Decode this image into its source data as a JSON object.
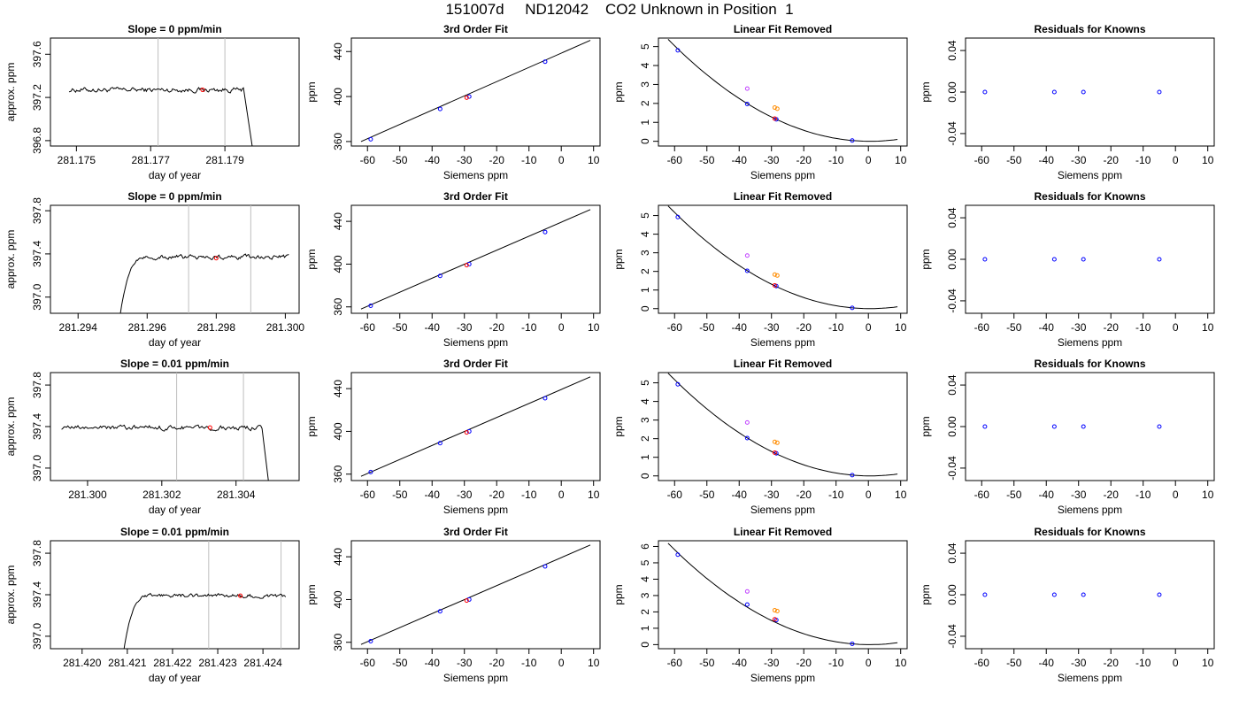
{
  "page": {
    "title": "151007d     ND12042    CO2 Unknown in Position  1"
  },
  "colors": {
    "known": "#0000ff",
    "sample": "#ff0000",
    "ref_a": "#c040ff",
    "ref_b": "#ff8c00",
    "line": "#000000",
    "marker_line": "#bebebe"
  },
  "chart_data": [
    {
      "type": "line",
      "panel": "timeseries",
      "row": 0,
      "title": "Slope =  0  ppm/min",
      "xlabel": "day of year",
      "ylabel": "approx. ppm",
      "xlim": [
        281.1743,
        281.181
      ],
      "ylim": [
        396.75,
        397.75
      ],
      "xticks": [
        281.175,
        281.177,
        281.179
      ],
      "xticklabels": [
        "281.175",
        "281.177",
        "281.179"
      ],
      "yticks": [
        396.8,
        397.2,
        397.6
      ],
      "yticklabels": [
        "396.8",
        "397.2",
        "397.6"
      ],
      "trace": {
        "x_start": 281.1748,
        "x_end": 281.1795,
        "level": 397.27,
        "noise": 0.018,
        "lead_in": null,
        "drop": {
          "x": 281.1795,
          "to_x": 281.1798,
          "to": 396.6
        }
      },
      "markers": [
        281.1772,
        281.179
      ],
      "sample_point": [
        281.1784,
        397.27
      ]
    },
    {
      "type": "line",
      "panel": "timeseries",
      "row": 1,
      "title": "Slope =  0  ppm/min",
      "xlabel": "day of year",
      "ylabel": "approx. ppm",
      "xlim": [
        281.2932,
        281.3004
      ],
      "ylim": [
        396.85,
        397.85
      ],
      "xticks": [
        281.294,
        281.296,
        281.298,
        281.3
      ],
      "xticklabels": [
        "281.294",
        "281.296",
        "281.298",
        "281.300"
      ],
      "yticks": [
        397.0,
        397.4,
        397.8
      ],
      "yticklabels": [
        "397.0",
        "397.4",
        "397.8"
      ],
      "trace": {
        "x_start": 281.2952,
        "x_end": 281.3001,
        "level": 397.37,
        "noise": 0.016,
        "lead_in": {
          "from": 396.8,
          "width": 0.0008
        },
        "drop": null
      },
      "markers": [
        281.2972,
        281.299
      ],
      "sample_point": [
        281.298,
        397.36
      ]
    },
    {
      "type": "line",
      "panel": "timeseries",
      "row": 2,
      "title": "Slope =  0.01  ppm/min",
      "xlabel": "day of year",
      "ylabel": "approx. ppm",
      "xlim": [
        281.299,
        281.3057
      ],
      "ylim": [
        396.88,
        397.92
      ],
      "xticks": [
        281.3,
        281.302,
        281.304
      ],
      "xticklabels": [
        "281.300",
        "281.302",
        "281.304"
      ],
      "yticks": [
        397.0,
        397.4,
        397.8
      ],
      "yticklabels": [
        "397.0",
        "397.4",
        "397.8"
      ],
      "trace": {
        "x_start": 281.2993,
        "x_end": 281.3047,
        "level": 397.39,
        "noise": 0.018,
        "lead_in": null,
        "drop": {
          "x": 281.3047,
          "to_x": 281.3049,
          "to": 396.8
        }
      },
      "markers": [
        281.3024,
        281.3042
      ],
      "sample_point": [
        281.3033,
        397.39
      ]
    },
    {
      "type": "line",
      "panel": "timeseries",
      "row": 3,
      "title": "Slope =  0.01  ppm/min",
      "xlabel": "day of year",
      "ylabel": "approx. ppm",
      "xlim": [
        281.4193,
        281.4248
      ],
      "ylim": [
        396.88,
        397.92
      ],
      "xticks": [
        281.42,
        281.421,
        281.422,
        281.423,
        281.424
      ],
      "xticklabels": [
        "281.420",
        "281.421",
        "281.422",
        "281.423",
        "281.424"
      ],
      "yticks": [
        397.0,
        397.4,
        397.8
      ],
      "yticklabels": [
        "397.0",
        "397.4",
        "397.8"
      ],
      "trace": {
        "x_start": 281.4209,
        "x_end": 281.4245,
        "level": 397.39,
        "noise": 0.015,
        "lead_in": {
          "from": 396.8,
          "width": 0.0006
        },
        "drop": null
      },
      "markers": [
        281.4228,
        281.4244
      ],
      "sample_point": [
        281.4235,
        397.39
      ]
    },
    {
      "type": "scatter",
      "panel": "fit",
      "row": 0,
      "title": "3rd Order Fit",
      "xlabel": "Siemens ppm",
      "ylabel": "ppm",
      "xlim": [
        -65,
        12
      ],
      "ylim": [
        356,
        452
      ],
      "xticks": [
        -60,
        -50,
        -40,
        -30,
        -20,
        -10,
        0,
        10
      ],
      "yticks": [
        360,
        400,
        440
      ],
      "curve": {
        "x0": -62,
        "y0": 360,
        "x1": 9,
        "y1": 450
      },
      "points": [
        {
          "x": -59,
          "y": 362,
          "c": "known"
        },
        {
          "x": -37.5,
          "y": 389,
          "c": "known"
        },
        {
          "x": -28.5,
          "y": 400,
          "c": "known"
        },
        {
          "x": -5,
          "y": 431,
          "c": "known"
        },
        {
          "x": -29.3,
          "y": 399,
          "c": "sample"
        }
      ]
    },
    {
      "type": "scatter",
      "panel": "fit",
      "row": 1,
      "title": "3rd Order Fit",
      "xlabel": "Siemens ppm",
      "ylabel": "ppm",
      "xlim": [
        -65,
        12
      ],
      "ylim": [
        354,
        455
      ],
      "xticks": [
        -60,
        -50,
        -40,
        -30,
        -20,
        -10,
        0,
        10
      ],
      "yticks": [
        360,
        400,
        440
      ],
      "curve": {
        "x0": -62,
        "y0": 358,
        "x1": 9,
        "y1": 451
      },
      "points": [
        {
          "x": -59,
          "y": 361,
          "c": "known"
        },
        {
          "x": -37.5,
          "y": 389,
          "c": "known"
        },
        {
          "x": -28.5,
          "y": 400,
          "c": "known"
        },
        {
          "x": -5,
          "y": 430,
          "c": "known"
        },
        {
          "x": -29.3,
          "y": 399,
          "c": "sample"
        }
      ]
    },
    {
      "type": "scatter",
      "panel": "fit",
      "row": 2,
      "title": "3rd Order Fit",
      "xlabel": "Siemens ppm",
      "ylabel": "ppm",
      "xlim": [
        -65,
        12
      ],
      "ylim": [
        354,
        455
      ],
      "xticks": [
        -60,
        -50,
        -40,
        -30,
        -20,
        -10,
        0,
        10
      ],
      "yticks": [
        360,
        400,
        440
      ],
      "curve": {
        "x0": -62,
        "y0": 358,
        "x1": 9,
        "y1": 451
      },
      "points": [
        {
          "x": -59,
          "y": 362,
          "c": "known"
        },
        {
          "x": -37.5,
          "y": 389,
          "c": "known"
        },
        {
          "x": -28.5,
          "y": 400,
          "c": "known"
        },
        {
          "x": -5,
          "y": 431,
          "c": "known"
        },
        {
          "x": -29.3,
          "y": 399,
          "c": "sample"
        }
      ]
    },
    {
      "type": "scatter",
      "panel": "fit",
      "row": 3,
      "title": "3rd Order Fit",
      "xlabel": "Siemens ppm",
      "ylabel": "ppm",
      "xlim": [
        -65,
        12
      ],
      "ylim": [
        354,
        455
      ],
      "xticks": [
        -60,
        -50,
        -40,
        -30,
        -20,
        -10,
        0,
        10
      ],
      "yticks": [
        360,
        400,
        440
      ],
      "curve": {
        "x0": -62,
        "y0": 358,
        "x1": 9,
        "y1": 451
      },
      "points": [
        {
          "x": -59,
          "y": 361,
          "c": "known"
        },
        {
          "x": -37.5,
          "y": 389,
          "c": "known"
        },
        {
          "x": -28.5,
          "y": 400,
          "c": "known"
        },
        {
          "x": -5,
          "y": 431,
          "c": "known"
        },
        {
          "x": -29.3,
          "y": 399,
          "c": "sample"
        }
      ]
    },
    {
      "type": "scatter",
      "panel": "linear-removed",
      "row": 0,
      "title": "Linear Fit Removed",
      "xlabel": "Siemens ppm",
      "ylabel": "ppm",
      "xlim": [
        -65,
        12
      ],
      "ylim": [
        -0.25,
        5.45
      ],
      "xticks": [
        -60,
        -50,
        -40,
        -30,
        -20,
        -10,
        0,
        10
      ],
      "yticks": [
        0,
        1,
        2,
        3,
        4,
        5
      ],
      "curve": {
        "a": 0.001378,
        "h": 0.5,
        "x0": -62,
        "x1": 9
      },
      "points": [
        {
          "x": -59,
          "y": 4.8,
          "c": "known"
        },
        {
          "x": -37.5,
          "y": 1.97,
          "c": "known"
        },
        {
          "x": -28.5,
          "y": 1.16,
          "c": "known"
        },
        {
          "x": -5,
          "y": 0.04,
          "c": "known"
        },
        {
          "x": -37.5,
          "y": 2.78,
          "c": "ref_a"
        },
        {
          "x": -29,
          "y": 1.78,
          "c": "ref_b"
        },
        {
          "x": -28.2,
          "y": 1.72,
          "c": "ref_b"
        },
        {
          "x": -29,
          "y": 1.2,
          "c": "sample"
        }
      ]
    },
    {
      "type": "scatter",
      "panel": "linear-removed",
      "row": 1,
      "title": "Linear Fit Removed",
      "xlabel": "Siemens ppm",
      "ylabel": "ppm",
      "xlim": [
        -65,
        12
      ],
      "ylim": [
        -0.25,
        5.55
      ],
      "xticks": [
        -60,
        -50,
        -40,
        -30,
        -20,
        -10,
        0,
        10
      ],
      "yticks": [
        0,
        1,
        2,
        3,
        4,
        5
      ],
      "curve": {
        "a": 0.001412,
        "h": 0.5,
        "x0": -62,
        "x1": 9
      },
      "points": [
        {
          "x": -59,
          "y": 4.92,
          "c": "known"
        },
        {
          "x": -37.5,
          "y": 2.03,
          "c": "known"
        },
        {
          "x": -28.5,
          "y": 1.21,
          "c": "known"
        },
        {
          "x": -5,
          "y": 0.04,
          "c": "known"
        },
        {
          "x": -37.5,
          "y": 2.85,
          "c": "ref_a"
        },
        {
          "x": -29,
          "y": 1.83,
          "c": "ref_b"
        },
        {
          "x": -28.2,
          "y": 1.78,
          "c": "ref_b"
        },
        {
          "x": -29,
          "y": 1.25,
          "c": "sample"
        }
      ]
    },
    {
      "type": "scatter",
      "panel": "linear-removed",
      "row": 2,
      "title": "Linear Fit Removed",
      "xlabel": "Siemens ppm",
      "ylabel": "ppm",
      "xlim": [
        -65,
        12
      ],
      "ylim": [
        -0.25,
        5.55
      ],
      "xticks": [
        -60,
        -50,
        -40,
        -30,
        -20,
        -10,
        0,
        10
      ],
      "yticks": [
        0,
        1,
        2,
        3,
        4,
        5
      ],
      "curve": {
        "a": 0.001412,
        "h": 0.5,
        "x0": -62,
        "x1": 9
      },
      "points": [
        {
          "x": -59,
          "y": 4.92,
          "c": "known"
        },
        {
          "x": -37.5,
          "y": 2.03,
          "c": "known"
        },
        {
          "x": -28.5,
          "y": 1.21,
          "c": "known"
        },
        {
          "x": -5,
          "y": 0.04,
          "c": "known"
        },
        {
          "x": -37.5,
          "y": 2.87,
          "c": "ref_a"
        },
        {
          "x": -29,
          "y": 1.83,
          "c": "ref_b"
        },
        {
          "x": -28.2,
          "y": 1.78,
          "c": "ref_b"
        },
        {
          "x": -29,
          "y": 1.25,
          "c": "sample"
        }
      ]
    },
    {
      "type": "scatter",
      "panel": "linear-removed",
      "row": 3,
      "title": "Linear Fit Removed",
      "xlabel": "Siemens ppm",
      "ylabel": "ppm",
      "xlim": [
        -65,
        12
      ],
      "ylim": [
        -0.25,
        6.35
      ],
      "xticks": [
        -60,
        -50,
        -40,
        -30,
        -20,
        -10,
        0,
        10
      ],
      "yticks": [
        0,
        1,
        2,
        3,
        4,
        5,
        6
      ],
      "curve": {
        "a": 0.001585,
        "h": 0.5,
        "x0": -62,
        "x1": 9
      },
      "points": [
        {
          "x": -59,
          "y": 5.5,
          "c": "known"
        },
        {
          "x": -37.5,
          "y": 2.45,
          "c": "known"
        },
        {
          "x": -28.5,
          "y": 1.5,
          "c": "known"
        },
        {
          "x": -5,
          "y": 0.05,
          "c": "known"
        },
        {
          "x": -37.5,
          "y": 3.25,
          "c": "ref_a"
        },
        {
          "x": -29,
          "y": 2.1,
          "c": "ref_b"
        },
        {
          "x": -28.2,
          "y": 2.05,
          "c": "ref_b"
        },
        {
          "x": -29,
          "y": 1.55,
          "c": "sample"
        }
      ]
    },
    {
      "type": "scatter",
      "panel": "residuals",
      "row": 0,
      "title": "Residuals for Knowns",
      "xlabel": "Siemens ppm",
      "ylabel": "ppm",
      "xlim": [
        -65,
        12
      ],
      "ylim": [
        -0.052,
        0.052
      ],
      "xticks": [
        -60,
        -50,
        -40,
        -30,
        -20,
        -10,
        0,
        10
      ],
      "yticks": [
        -0.04,
        0.0,
        0.04
      ],
      "yticklabels": [
        "-0.04",
        "0.00",
        "0.04"
      ],
      "points": [
        {
          "x": -59,
          "y": 0,
          "c": "known"
        },
        {
          "x": -37.5,
          "y": 0,
          "c": "known"
        },
        {
          "x": -28.5,
          "y": 0,
          "c": "known"
        },
        {
          "x": -5,
          "y": 0,
          "c": "known"
        }
      ]
    },
    {
      "type": "scatter",
      "panel": "residuals",
      "row": 1,
      "title": "Residuals for Knowns",
      "xlabel": "Siemens ppm",
      "ylabel": "ppm",
      "xlim": [
        -65,
        12
      ],
      "ylim": [
        -0.052,
        0.052
      ],
      "xticks": [
        -60,
        -50,
        -40,
        -30,
        -20,
        -10,
        0,
        10
      ],
      "yticks": [
        -0.04,
        0.0,
        0.04
      ],
      "yticklabels": [
        "-0.04",
        "0.00",
        "0.04"
      ],
      "points": [
        {
          "x": -59,
          "y": 0,
          "c": "known"
        },
        {
          "x": -37.5,
          "y": 0,
          "c": "known"
        },
        {
          "x": -28.5,
          "y": 0,
          "c": "known"
        },
        {
          "x": -5,
          "y": 0,
          "c": "known"
        }
      ]
    },
    {
      "type": "scatter",
      "panel": "residuals",
      "row": 2,
      "title": "Residuals for Knowns",
      "xlabel": "Siemens ppm",
      "ylabel": "ppm",
      "xlim": [
        -65,
        12
      ],
      "ylim": [
        -0.052,
        0.052
      ],
      "xticks": [
        -60,
        -50,
        -40,
        -30,
        -20,
        -10,
        0,
        10
      ],
      "yticks": [
        -0.04,
        0.0,
        0.04
      ],
      "yticklabels": [
        "-0.04",
        "0.00",
        "0.04"
      ],
      "points": [
        {
          "x": -59,
          "y": 0,
          "c": "known"
        },
        {
          "x": -37.5,
          "y": 0,
          "c": "known"
        },
        {
          "x": -28.5,
          "y": 0,
          "c": "known"
        },
        {
          "x": -5,
          "y": 0,
          "c": "known"
        }
      ]
    },
    {
      "type": "scatter",
      "panel": "residuals",
      "row": 3,
      "title": "Residuals for Knowns",
      "xlabel": "Siemens ppm",
      "ylabel": "ppm",
      "xlim": [
        -65,
        12
      ],
      "ylim": [
        -0.052,
        0.052
      ],
      "xticks": [
        -60,
        -50,
        -40,
        -30,
        -20,
        -10,
        0,
        10
      ],
      "yticks": [
        -0.04,
        0.0,
        0.04
      ],
      "yticklabels": [
        "-0.04",
        "0.00",
        "0.04"
      ],
      "points": [
        {
          "x": -59,
          "y": 0,
          "c": "known"
        },
        {
          "x": -37.5,
          "y": 0,
          "c": "known"
        },
        {
          "x": -28.5,
          "y": 0,
          "c": "known"
        },
        {
          "x": -5,
          "y": 0,
          "c": "known"
        }
      ]
    }
  ]
}
